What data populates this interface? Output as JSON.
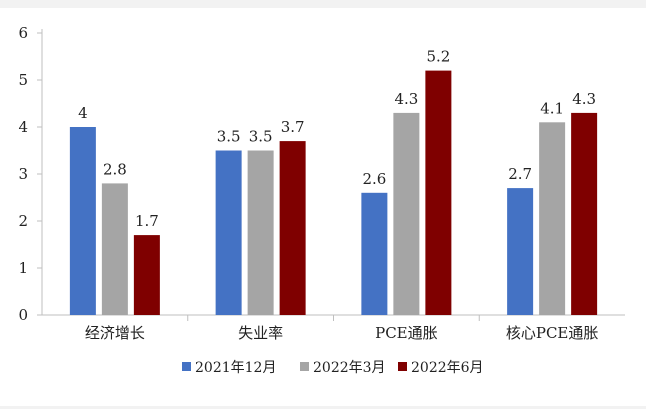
{
  "chart_data": {
    "type": "bar",
    "title": "",
    "xlabel": "",
    "ylabel": "",
    "categories": [
      "经济增长",
      "失业率",
      "PCE通胀",
      "核心PCE通胀"
    ],
    "ylim": [
      0,
      6
    ],
    "yticks": [
      0,
      1,
      2,
      3,
      4,
      5,
      6
    ],
    "grid": false,
    "legend_position": "bottom",
    "series": [
      {
        "name": "2021年12月",
        "color": "#4472c4",
        "values": [
          4,
          3.5,
          2.6,
          2.7
        ],
        "labels": [
          "4",
          "3.5",
          "2.6",
          "2.7"
        ]
      },
      {
        "name": "2022年3月",
        "color": "#a5a5a5",
        "values": [
          2.8,
          3.5,
          4.3,
          4.1
        ],
        "labels": [
          "2.8",
          "3.5",
          "4.3",
          "4.1"
        ]
      },
      {
        "name": "2022年6月",
        "color": "#7f0000",
        "values": [
          1.7,
          3.7,
          5.2,
          4.3
        ],
        "labels": [
          "1.7",
          "3.7",
          "5.2",
          "4.3"
        ]
      }
    ]
  }
}
